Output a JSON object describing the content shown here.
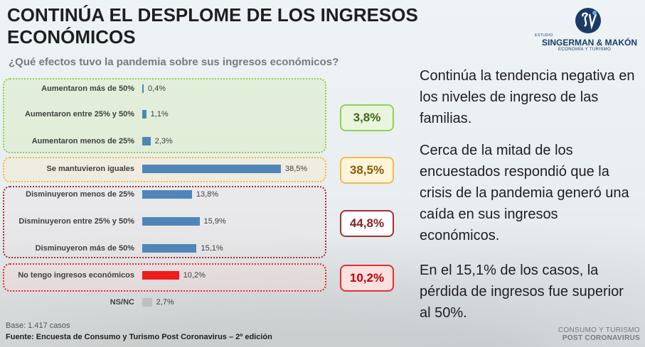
{
  "header": {
    "title": "CONTINÚA EL DESPLOME DE LOS INGRESOS ECONÓMICOS",
    "subtitle": "¿Qué efectos tuvo la pandemia sobre sus ingresos económicos?"
  },
  "logo": {
    "estudio": "ESTUDIO",
    "name": "SINGERMAN & MAKÓN",
    "tagline": "ECONOMÍA Y TURISMO"
  },
  "chart_data": {
    "type": "bar",
    "orientation": "horizontal",
    "categories": [
      "Aumentaron más de 50%",
      "Aumentaron entre 25% y 50%",
      "Aumentaron menos de 25%",
      "Se mantuvieron iguales",
      "Disminuyeron menos de 25%",
      "Disminuyeron entre 25% y 50%",
      "Disminuyeron más de 50%",
      "No tengo ingresos económicos",
      "NS/NC"
    ],
    "values": [
      0.4,
      1.1,
      2.3,
      38.5,
      13.8,
      15.9,
      15.1,
      10.2,
      2.7
    ],
    "value_labels": [
      "0,4%",
      "1,1%",
      "2,3%",
      "38,5%",
      "13,8%",
      "15,9%",
      "15,1%",
      "10,2%",
      "2,7%"
    ],
    "bar_colors": [
      "#4f86b8",
      "#4f86b8",
      "#4f86b8",
      "#4f86b8",
      "#4f86b8",
      "#4f86b8",
      "#4f86b8",
      "#ee1c1c",
      "#bfbfbf"
    ],
    "groups": [
      {
        "label": "3,8%",
        "color": "#92d050"
      },
      {
        "label": "38,5%",
        "color": "#f4b942"
      },
      {
        "label": "44,8%",
        "color": "#a23036"
      },
      {
        "label": "10,2%",
        "color": "#e03030"
      }
    ],
    "xlim": [
      0,
      40
    ],
    "grid": false
  },
  "text": {
    "p1": "Continúa la tendencia negativa en los niveles de ingreso de las familias.",
    "p2": "Cerca de la mitad de los encuestados respondió que la crisis de la pandemia generó una caída en sus ingresos económicos.",
    "p3": "En el 15,1% de los casos, la pérdida de ingresos fue superior al 50%."
  },
  "footer": {
    "base": "Base: 1.417 casos",
    "source": "Fuente: Encuesta de Consumo y Turismo Post Coronavirus – 2º edición",
    "brand_line1": "CONSUMO Y TURISMO",
    "brand_line2": "POST CORONAVIRUS"
  }
}
